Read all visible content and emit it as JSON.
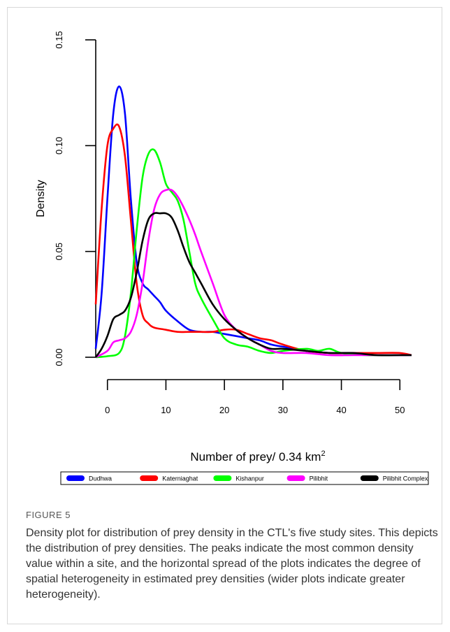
{
  "chart_data": {
    "type": "line",
    "title": "",
    "xlabel": "Number of prey/ 0.34 km",
    "xlabel_sup": "2",
    "ylabel": "Density",
    "xlim": [
      -2,
      52
    ],
    "ylim": [
      0,
      0.15
    ],
    "x_ticks": [
      0,
      10,
      20,
      30,
      40,
      50
    ],
    "x_tick_labels": [
      "0",
      "10",
      "20",
      "30",
      "40",
      "50"
    ],
    "y_ticks": [
      0,
      0.05,
      0.1,
      0.15
    ],
    "y_tick_labels": [
      "0.00",
      "0.05",
      "0.10",
      "0.15"
    ],
    "grid": false,
    "legend_placement": "bottom",
    "series": [
      {
        "name": "Dudhwa",
        "color": "#0000ff",
        "x": [
          -2,
          -1,
          0,
          1,
          2,
          3,
          4,
          5,
          6,
          7,
          8,
          9,
          10,
          12,
          14,
          16,
          18,
          20,
          22,
          24,
          26,
          28,
          30,
          34,
          38,
          42,
          46,
          50,
          52
        ],
        "y": [
          0.004,
          0.03,
          0.075,
          0.115,
          0.128,
          0.115,
          0.075,
          0.045,
          0.035,
          0.032,
          0.029,
          0.026,
          0.022,
          0.017,
          0.013,
          0.012,
          0.012,
          0.011,
          0.01,
          0.009,
          0.008,
          0.006,
          0.005,
          0.003,
          0.002,
          0.002,
          0.001,
          0.001,
          0.001
        ]
      },
      {
        "name": "Katerniaghat",
        "color": "#ff0000",
        "x": [
          -2,
          -1,
          0,
          1,
          2,
          3,
          4,
          5,
          6,
          7,
          8,
          10,
          12,
          14,
          16,
          18,
          20,
          22,
          24,
          26,
          28,
          30,
          34,
          38,
          42,
          46,
          50,
          52
        ],
        "y": [
          0.025,
          0.07,
          0.1,
          0.108,
          0.109,
          0.095,
          0.065,
          0.035,
          0.02,
          0.016,
          0.014,
          0.013,
          0.012,
          0.012,
          0.012,
          0.012,
          0.013,
          0.013,
          0.011,
          0.009,
          0.008,
          0.006,
          0.003,
          0.002,
          0.002,
          0.002,
          0.002,
          0.001
        ]
      },
      {
        "name": "Kishanpur",
        "color": "#00ff00",
        "x": [
          -2,
          0,
          2,
          3,
          4,
          5,
          6,
          7,
          8,
          9,
          10,
          11,
          12,
          13,
          14,
          15,
          16,
          18,
          20,
          22,
          24,
          26,
          28,
          30,
          34,
          36,
          38,
          40,
          44,
          48,
          52
        ],
        "y": [
          0,
          0.0005,
          0.002,
          0.01,
          0.03,
          0.06,
          0.085,
          0.096,
          0.098,
          0.092,
          0.082,
          0.078,
          0.074,
          0.065,
          0.05,
          0.035,
          0.028,
          0.018,
          0.009,
          0.006,
          0.005,
          0.003,
          0.002,
          0.003,
          0.004,
          0.003,
          0.004,
          0.002,
          0.001,
          0.001,
          0.001
        ]
      },
      {
        "name": "Pilibhit",
        "color": "#ff00ff",
        "x": [
          -2,
          0,
          1,
          2,
          3,
          4,
          5,
          6,
          7,
          8,
          9,
          10,
          11,
          12,
          13,
          14,
          15,
          16,
          18,
          20,
          22,
          24,
          26,
          28,
          30,
          34,
          38,
          42,
          46,
          50,
          52
        ],
        "y": [
          0,
          0.003,
          0.007,
          0.008,
          0.009,
          0.012,
          0.02,
          0.035,
          0.055,
          0.07,
          0.077,
          0.079,
          0.079,
          0.076,
          0.071,
          0.065,
          0.058,
          0.05,
          0.035,
          0.02,
          0.013,
          0.009,
          0.006,
          0.003,
          0.002,
          0.002,
          0.001,
          0.001,
          0.001,
          0.001,
          0.001
        ]
      },
      {
        "name": "Pilibhit Complex",
        "color": "#000000",
        "x": [
          -2,
          -1,
          0,
          1,
          2,
          3,
          4,
          5,
          6,
          7,
          8,
          9,
          10,
          11,
          12,
          13,
          14,
          15,
          16,
          18,
          20,
          22,
          24,
          26,
          28,
          30,
          34,
          38,
          42,
          46,
          50,
          52
        ],
        "y": [
          0,
          0.004,
          0.01,
          0.018,
          0.02,
          0.022,
          0.028,
          0.04,
          0.055,
          0.065,
          0.068,
          0.068,
          0.068,
          0.066,
          0.06,
          0.052,
          0.045,
          0.04,
          0.035,
          0.025,
          0.018,
          0.013,
          0.009,
          0.006,
          0.004,
          0.004,
          0.003,
          0.002,
          0.002,
          0.001,
          0.001,
          0.001
        ]
      }
    ]
  },
  "caption": {
    "label": "FIGURE 5",
    "text": "Density plot for distribution of prey density in the CTL's five study sites. This depicts the distribution of prey densities. The peaks indicate the most common density value within a site, and the horizontal spread of the plots indicates the degree of spatial heterogeneity in estimated prey densities (wider plots indicate greater heterogeneity)."
  }
}
